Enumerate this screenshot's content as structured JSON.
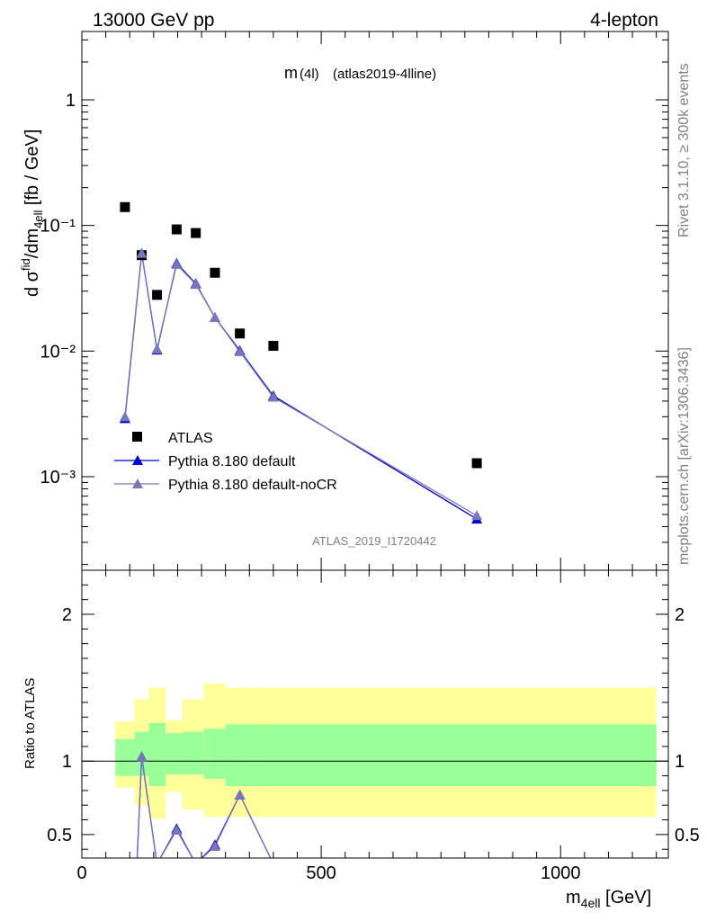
{
  "header": {
    "left": "13000 GeV pp",
    "right": "4-lepton"
  },
  "side_labels": {
    "rivet": "Rivet 3.1.10, ≥ 300k events",
    "mcplots": "mcplots.cern.ch [arXiv:1306.3436]"
  },
  "chart_data": [
    {
      "type": "scatter",
      "panel": "main",
      "title_main": "m",
      "title_sub": "(4l)",
      "title_rest": "(atlas2019-4lline)",
      "ylabel": "dσᶠⁱd₄ₑₗₗ/dm₄ₑₗₗ [fb / GeV]",
      "ylabel_parts": [
        "d σ",
        "fid",
        "/dm",
        "4ell",
        " [fb / GeV]"
      ],
      "yscale": "log",
      "ylim": [
        0.00018,
        3.5
      ],
      "xlim": [
        0,
        1225
      ],
      "grid": false,
      "legend_placement": "lower-left",
      "watermark": "ATLAS_2019_I1720442",
      "y_tick_labels": [
        "1",
        "10⁻¹",
        "10⁻²",
        "10⁻³"
      ],
      "series": [
        {
          "name": "ATLAS",
          "marker": "square",
          "color": "#000000",
          "x": [
            90,
            125,
            157,
            198,
            238,
            278,
            330,
            400,
            825
          ],
          "y": [
            0.14,
            0.058,
            0.028,
            0.093,
            0.087,
            0.042,
            0.0138,
            0.011,
            0.00128
          ]
        },
        {
          "name": "Pythia 8.180 default",
          "marker": "triangle",
          "color": "#0000cc",
          "x": [
            90,
            125,
            157,
            198,
            238,
            278,
            330,
            400,
            825
          ],
          "y": [
            0.0029,
            0.06,
            0.0102,
            0.05,
            0.0345,
            0.0185,
            0.0101,
            0.0044,
            0.00046
          ]
        },
        {
          "name": "Pythia 8.180 default-noCR",
          "marker": "triangle",
          "color": "#7777bb",
          "x": [
            90,
            125,
            157,
            198,
            238,
            278,
            330,
            400,
            825
          ],
          "y": [
            0.003,
            0.06,
            0.0104,
            0.049,
            0.034,
            0.0185,
            0.0099,
            0.0043,
            0.00049
          ]
        }
      ]
    },
    {
      "type": "line",
      "panel": "ratio",
      "ylabel": "Ratio to ATLAS",
      "xlabel_main": "m",
      "xlabel_sub": "4ell",
      "xlabel_rest": " [GeV]",
      "ylim": [
        0.34,
        2.3
      ],
      "xlim": [
        0,
        1225
      ],
      "x_ticks": [
        0,
        500,
        1000
      ],
      "y_ticks": [
        0.5,
        1,
        2
      ],
      "bands": {
        "edges": [
          70,
          110,
          140,
          175,
          210,
          255,
          300,
          360,
          1200
        ],
        "inner_low": [
          0.9,
          0.9,
          0.83,
          0.91,
          0.91,
          0.88,
          0.83,
          0.83
        ],
        "inner_high": [
          1.15,
          1.2,
          1.26,
          1.19,
          1.2,
          1.22,
          1.25,
          1.25
        ],
        "outer_low": [
          0.82,
          0.7,
          0.61,
          0.79,
          0.67,
          0.62,
          0.62,
          0.62
        ],
        "outer_high": [
          1.27,
          1.42,
          1.5,
          1.28,
          1.42,
          1.53,
          1.5,
          1.5
        ],
        "inner_color": "#99ff99",
        "outer_color": "#ffff99"
      },
      "series": [
        {
          "name": "Pythia 8.180 default",
          "color": "#0000cc",
          "x": [
            115,
            125,
            157,
            198,
            238,
            278,
            330,
            400
          ],
          "y": [
            0.3,
            1.03,
            0.3,
            0.54,
            0.3,
            0.43,
            0.77,
            0.3
          ]
        },
        {
          "name": "Pythia 8.180 default-noCR",
          "color": "#7777bb",
          "x": [
            115,
            125,
            157,
            198,
            238,
            278,
            330,
            400
          ],
          "y": [
            0.3,
            1.03,
            0.3,
            0.53,
            0.3,
            0.42,
            0.77,
            0.3
          ]
        }
      ]
    }
  ]
}
